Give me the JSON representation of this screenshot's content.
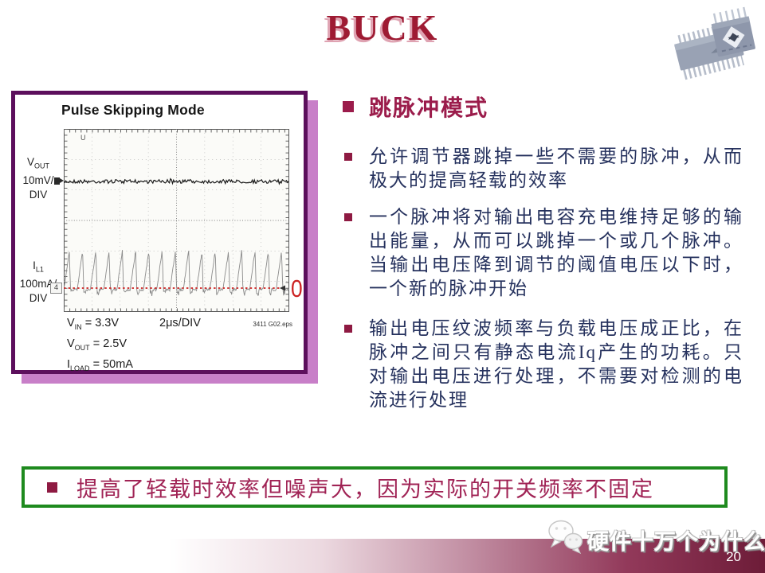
{
  "slide": {
    "title": "BUCK",
    "page_number": "20",
    "watermark_text": "硬件十万个为什么"
  },
  "colors": {
    "title_red": "#9E1B33",
    "heading_maroon": "#9B1C4B",
    "body_navy": "#26325E",
    "figure_border_purple": "#5C0F5C",
    "figure_shadow_purple": "#C87FC8",
    "banner_border_green": "#1E8A1E",
    "banner_text_maroon": "#A02355",
    "zero_line_red": "#CC2222",
    "footer_dark_maroon": "#6D1C38"
  },
  "figure": {
    "title": "Pulse Skipping Mode",
    "trigger_marker": "U",
    "ch1": {
      "sym": "V",
      "sub": "OUT",
      "scale": "10mV/",
      "div": "DIV"
    },
    "ch2": {
      "sym": "I",
      "sub": "L1",
      "scale": "100mA/",
      "div": "DIV",
      "marker": "4"
    },
    "zero_label": "0",
    "timebase": "2μs/DIV",
    "source_ref": "3411 G02.eps",
    "conditions": [
      {
        "sym": "V",
        "sub": "IN",
        "val": " = 3.3V"
      },
      {
        "sym": "V",
        "sub": "OUT",
        "val": " = 2.5V"
      },
      {
        "sym": "I",
        "sub": "LOAD",
        "val": " = 50mA"
      }
    ]
  },
  "chart_data": {
    "type": "line",
    "title": "Pulse Skipping Mode",
    "x_axis": "2μs/DIV",
    "grid": "8x6 divisions, dotted",
    "series": [
      {
        "name": "VOUT",
        "scale": "10mV/DIV",
        "description": "flat noisy ripple trace about 1.8 divisions below plot top"
      },
      {
        "name": "IL1",
        "scale": "100mA/DIV",
        "description": "about 17 sawtooth inductor-current pulse bursts, baseline on the 0 reference line (red dotted), peaks about 1.3 divisions high"
      }
    ],
    "conditions": [
      "VIN = 3.3V",
      "VOUT = 2.5V",
      "ILOAD = 50mA"
    ]
  },
  "content": {
    "heading": "跳脉冲模式",
    "bullets": [
      "允许调节器跳掉一些不需要的脉冲，从而极大的提高轻载的效率",
      "一个脉冲将对输出电容充电维持足够的输出能量，从而可以跳掉一个或几个脉冲。当输出电压降到调节的阈值电压以下时，一个新的脉冲开始",
      "输出电压纹波频率与负载电压成正比，在脉冲之间只有静态电流Iq产生的功耗。只对输出电压进行处理，不需要对检测的电流进行处理"
    ],
    "banner": "提高了轻载时效率但噪声大，因为实际的开关频率不固定"
  }
}
